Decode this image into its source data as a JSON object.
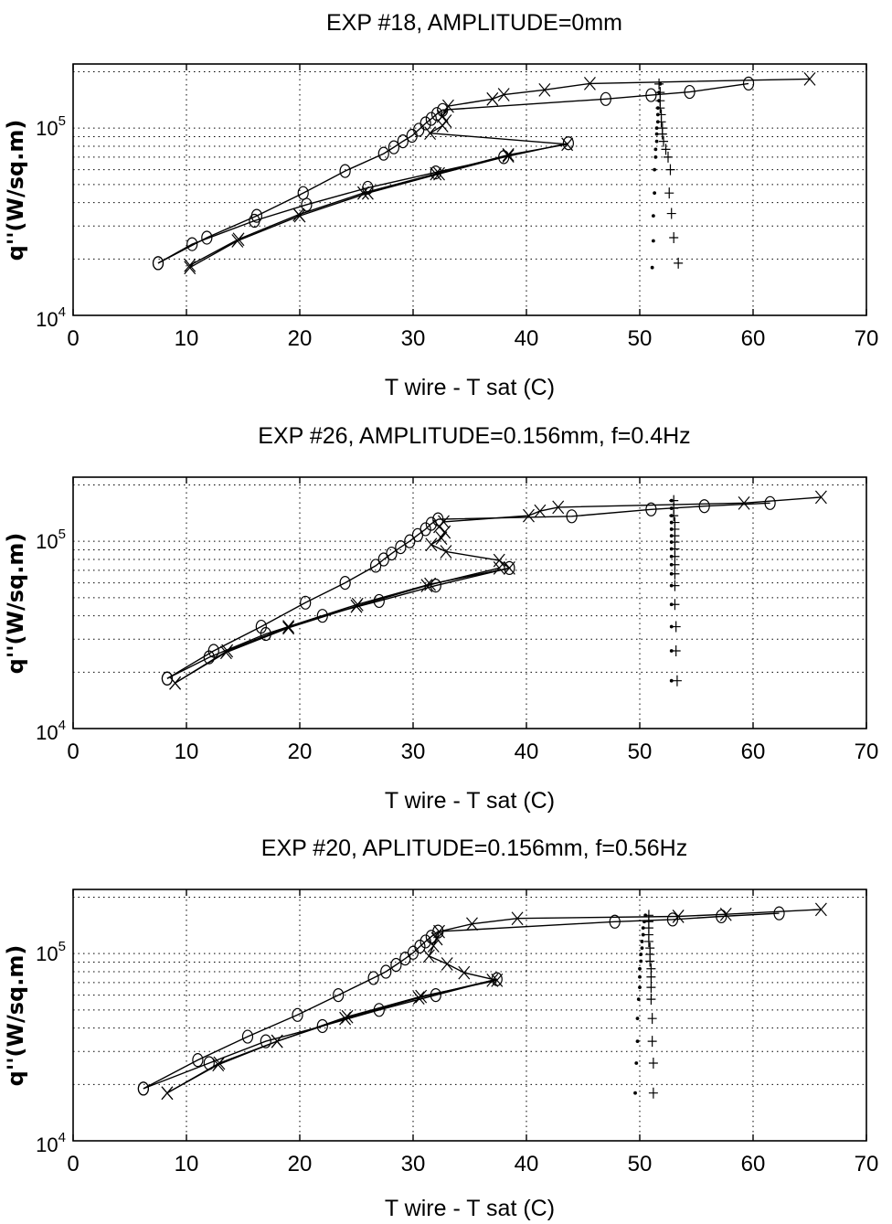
{
  "chart_data": [
    {
      "type": "line",
      "title": "EXP #18, AMPLITUDE=0mm",
      "xlabel": "T wire - T sat (C)",
      "ylabel": "q''(W/sq.m)",
      "xlim": [
        0,
        70
      ],
      "ylim": [
        10000,
        220000
      ],
      "yscale": "log",
      "grid": true,
      "xticks": [
        "0",
        "10",
        "20",
        "30",
        "40",
        "50",
        "60",
        "70"
      ],
      "yticks": [
        {
          "mantissa": "10",
          "exponent": "4"
        },
        {
          "mantissa": "10",
          "exponent": "5"
        }
      ],
      "series": [
        {
          "marker": "circle",
          "x": [
            7.5,
            11.8,
            16.2,
            20.3,
            24,
            27.4,
            28.3,
            29.1,
            29.9,
            30.5,
            31.1,
            31.6,
            32.1,
            32.6,
            47,
            51,
            54.4,
            59.6
          ],
          "y": [
            19000,
            26000,
            34000,
            45000,
            59000,
            73000,
            79000,
            85000,
            91000,
            98000,
            106000,
            112000,
            119000,
            125000,
            143000,
            150000,
            156000,
            173000
          ]
        },
        {
          "marker": "circle-line",
          "x": [
            7.5,
            10.5,
            16,
            20.6,
            26,
            32,
            38,
            43.7
          ],
          "y": [
            19000,
            24000,
            32000,
            39000,
            48000,
            58000,
            70000,
            83000
          ]
        },
        {
          "marker": "x",
          "x": [
            10.3,
            14.6,
            19.9,
            25.6,
            32,
            38.4,
            43.6,
            31.5,
            32.6,
            32.9,
            32.6,
            33.1,
            37,
            38,
            41.6,
            45.6,
            65
          ],
          "y": [
            18500,
            25500,
            34500,
            45000,
            57000,
            72000,
            82000,
            94000,
            103000,
            109000,
            116000,
            131000,
            143000,
            151000,
            160000,
            173000,
            183000
          ]
        },
        {
          "marker": "x-line",
          "x": [
            10.3,
            14.5,
            20,
            26,
            32.3,
            38.4
          ],
          "y": [
            18000,
            25000,
            34000,
            45000,
            57000,
            71000
          ]
        },
        {
          "marker": "plus",
          "x": [
            53.4,
            53,
            52.8,
            52.6,
            52.7,
            52.5,
            52.3,
            52.1,
            52,
            52,
            51.9,
            51.9,
            51.8,
            51.8,
            51.8,
            51.7
          ],
          "y": [
            19000,
            26000,
            35000,
            45000,
            60000,
            70000,
            77000,
            85000,
            93000,
            100000,
            108000,
            118000,
            128000,
            140000,
            155000,
            172000
          ]
        },
        {
          "marker": "dot",
          "x": [
            51.1,
            51.2,
            51.2,
            51.3,
            51.3,
            51.4,
            51.4,
            51.5,
            51.5,
            51.5,
            51.6,
            51.6,
            51.6,
            51.7,
            51.7,
            51.8
          ],
          "y": [
            18000,
            25000,
            34000,
            45000,
            60000,
            70000,
            77000,
            85000,
            93000,
            100000,
            108000,
            118000,
            128000,
            140000,
            155000,
            172000
          ]
        }
      ]
    },
    {
      "type": "line",
      "title": "EXP #26, AMPLITUDE=0.156mm, f=0.4Hz",
      "xlabel": "T wire - T sat (C)",
      "ylabel": "q''(W/sq.m)",
      "xlim": [
        0,
        70
      ],
      "ylim": [
        10000,
        220000
      ],
      "yscale": "log",
      "grid": true,
      "xticks": [
        "0",
        "10",
        "20",
        "30",
        "40",
        "50",
        "60",
        "70"
      ],
      "yticks": [
        {
          "mantissa": "10",
          "exponent": "4"
        },
        {
          "mantissa": "10",
          "exponent": "5"
        }
      ],
      "series": [
        {
          "marker": "circle",
          "x": [
            8.3,
            12.4,
            16.6,
            20.5,
            24,
            26.7,
            27.4,
            28.1,
            28.9,
            29.7,
            30.4,
            31.1,
            31.6,
            32.2,
            44,
            51,
            55.7,
            61.5
          ],
          "y": [
            18500,
            26000,
            35000,
            47000,
            60000,
            74000,
            80000,
            86000,
            93000,
            100000,
            108000,
            116000,
            124000,
            131000,
            136000,
            148000,
            154000,
            160000
          ]
        },
        {
          "marker": "circle-line",
          "x": [
            8.3,
            12,
            17,
            22,
            27,
            32,
            38.5
          ],
          "y": [
            18500,
            24000,
            32000,
            40000,
            48000,
            58000,
            72000
          ]
        },
        {
          "marker": "x",
          "x": [
            9,
            13.6,
            19,
            25.1,
            31.5,
            38.5,
            37.6,
            32.9,
            31.6,
            32.5,
            32.8,
            32.3,
            32.7,
            40.2,
            41.2,
            42.8,
            59.2,
            66
          ],
          "y": [
            17500,
            26000,
            35000,
            46000,
            59000,
            72000,
            79000,
            88000,
            96000,
            104000,
            112000,
            120000,
            127000,
            137000,
            145000,
            152000,
            160000,
            172000
          ]
        },
        {
          "marker": "x-line",
          "x": [
            9,
            13.5,
            19,
            25,
            31.2,
            37.6
          ],
          "y": [
            17500,
            25500,
            34500,
            45000,
            58000,
            72000
          ]
        },
        {
          "marker": "plus",
          "x": [
            53.3,
            53.2,
            53.2,
            53.1,
            53.1,
            53.1,
            53.1,
            53.1,
            53.1,
            53.1,
            53.1,
            53.1,
            53.1,
            53,
            53,
            53
          ],
          "y": [
            18000,
            26000,
            35000,
            46000,
            58000,
            67000,
            75000,
            83000,
            91000,
            99000,
            107000,
            116000,
            126000,
            137000,
            150000,
            165000
          ]
        },
        {
          "marker": "dot",
          "x": [
            52.8,
            52.8,
            52.8,
            52.8,
            52.8,
            52.8,
            52.8,
            52.8,
            52.8,
            52.8,
            52.8,
            52.8,
            52.8,
            52.8,
            52.8,
            52.8
          ],
          "y": [
            18000,
            26000,
            35000,
            46000,
            58000,
            67000,
            75000,
            83000,
            91000,
            99000,
            107000,
            116000,
            126000,
            137000,
            150000,
            165000
          ]
        }
      ]
    },
    {
      "type": "line",
      "title": "EXP #20, APLITUDE=0.156mm, f=0.56Hz",
      "xlabel": "T wire - T sat (C)",
      "ylabel": "q''(W/sq.m)",
      "xlim": [
        0,
        70
      ],
      "ylim": [
        10000,
        220000
      ],
      "yscale": "log",
      "grid": true,
      "xticks": [
        "0",
        "10",
        "20",
        "30",
        "40",
        "50",
        "60",
        "70"
      ],
      "yticks": [
        {
          "mantissa": "10",
          "exponent": "4"
        },
        {
          "mantissa": "10",
          "exponent": "5"
        }
      ],
      "series": [
        {
          "marker": "circle",
          "x": [
            6.2,
            11,
            15.4,
            19.8,
            23.4,
            26.5,
            27.6,
            28.5,
            29.3,
            30,
            30.6,
            31.1,
            31.6,
            32.2,
            47.8,
            52.9,
            57.2,
            62.3
          ],
          "y": [
            19000,
            27000,
            36000,
            47000,
            60000,
            74000,
            80000,
            87000,
            94000,
            101000,
            109000,
            116000,
            123000,
            131000,
            148000,
            152000,
            158000,
            164000
          ]
        },
        {
          "marker": "circle-line",
          "x": [
            6.2,
            12,
            17,
            22,
            27,
            32,
            37.4
          ],
          "y": [
            19000,
            26000,
            34000,
            41000,
            50000,
            60000,
            73000
          ]
        },
        {
          "marker": "x",
          "x": [
            8.3,
            12.9,
            18,
            24.2,
            30.7,
            37.4,
            34.5,
            33,
            31.4,
            31.8,
            32.1,
            32.3,
            35.2,
            39.2,
            53.4,
            57.6,
            66
          ],
          "y": [
            18000,
            26000,
            34000,
            46000,
            59000,
            72000,
            79000,
            88000,
            97000,
            110000,
            120000,
            131000,
            144000,
            154000,
            158000,
            162000,
            172000
          ]
        },
        {
          "marker": "x-line",
          "x": [
            8.3,
            12.8,
            18,
            24,
            30.5,
            37
          ],
          "y": [
            18000,
            25500,
            34000,
            45000,
            58000,
            72000
          ]
        },
        {
          "marker": "plus",
          "x": [
            51.2,
            51.2,
            51.1,
            51.1,
            51,
            51,
            51,
            51,
            50.9,
            50.9,
            50.9,
            50.8,
            50.8,
            50.8,
            50.8,
            50.8
          ],
          "y": [
            18000,
            26000,
            34000,
            45000,
            57000,
            66000,
            75000,
            83000,
            91000,
            99000,
            107000,
            116000,
            126000,
            137000,
            148000,
            160000
          ]
        },
        {
          "marker": "dot",
          "x": [
            49.6,
            49.7,
            49.8,
            49.8,
            49.9,
            50,
            50,
            50,
            50.1,
            50.1,
            50.2,
            50.2,
            50.3,
            50.3,
            50.4,
            50.5
          ],
          "y": [
            18000,
            26000,
            34000,
            45000,
            57000,
            66000,
            75000,
            83000,
            91000,
            99000,
            107000,
            116000,
            126000,
            137000,
            148000,
            160000
          ]
        }
      ]
    }
  ]
}
